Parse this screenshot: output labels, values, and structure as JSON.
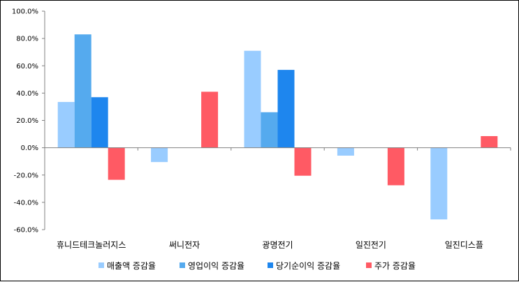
{
  "chart_data": {
    "type": "bar",
    "categories": [
      "휴니드테크놀러지스",
      "써니전자",
      "광명전기",
      "일진전기",
      "일진디스플"
    ],
    "series": [
      {
        "name": "매출액 증감율",
        "color": "#99ccff",
        "values": [
          33.5,
          -10.5,
          71.0,
          -5.8,
          -52.5
        ]
      },
      {
        "name": "영업이익 증감율",
        "color": "#55aaee",
        "values": [
          83.0,
          null,
          26.0,
          null,
          null
        ]
      },
      {
        "name": "당기순이익 증감율",
        "color": "#1e86ee",
        "values": [
          37.0,
          null,
          57.0,
          null,
          null
        ]
      },
      {
        "name": "주가 증감율",
        "color": "#ff5a64",
        "values": [
          -23.5,
          41.0,
          -20.5,
          -27.5,
          8.5
        ]
      }
    ],
    "yTicks": [
      100,
      80,
      60,
      40,
      20,
      0,
      -20,
      -40,
      -60
    ],
    "yTickLabels": [
      "100.0%",
      "80.0%",
      "60.0%",
      "40.0%",
      "20.0%",
      "0.0%",
      "-20.0%",
      "-40.0%",
      "-60.0%"
    ],
    "ylim": [
      -60,
      100
    ],
    "grid": false,
    "legend_position": "bottom"
  }
}
